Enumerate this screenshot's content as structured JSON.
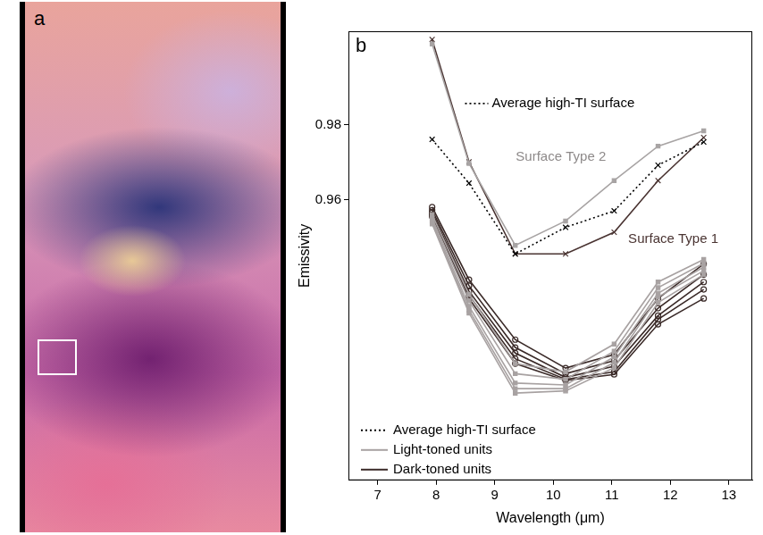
{
  "image_panel": {
    "label": "a"
  },
  "chart_data": {
    "type": "line",
    "panel_label": "b",
    "x_label": "Wavelength (μm)",
    "y_label": "Emissivity",
    "x": [
      7.93,
      8.56,
      9.35,
      10.21,
      11.04,
      11.79,
      12.57
    ],
    "xlim": [
      6.5,
      13.4
    ],
    "xticks": [
      7,
      8,
      9,
      10,
      11,
      12,
      13
    ],
    "ylim": [
      0.885,
      1.005
    ],
    "yticks": [
      0.96,
      0.98
    ],
    "grid": false,
    "legend": "bottom left",
    "annotations": [
      {
        "text": "Average high-TI surface",
        "x": 8.95,
        "y": 0.9857,
        "line_style": "dotted"
      },
      {
        "text": "Surface Type 2",
        "x": 9.36,
        "y": 0.9713
      },
      {
        "text": "Surface Type 1",
        "x": 11.28,
        "y": 0.9495
      }
    ],
    "series": [
      {
        "name": "Average high-TI surface",
        "color": "#000000",
        "line_style": "dotted",
        "marker": "x",
        "values": [
          0.9761,
          0.9644,
          0.9455,
          0.9526,
          0.957,
          0.9692,
          0.9754
        ]
      },
      {
        "name": "Surface Type 2",
        "color": "#a8a4a4",
        "line_style": "solid",
        "marker": "square",
        "values": [
          1.0016,
          0.9697,
          0.9478,
          0.9543,
          0.9651,
          0.9743,
          0.9784
        ]
      },
      {
        "name": "Surface Type 1",
        "color": "#4a3432",
        "line_style": "solid",
        "marker": "x",
        "values": [
          1.0028,
          0.9701,
          0.9455,
          0.9455,
          0.9513,
          0.9651,
          0.9766
        ]
      },
      {
        "name": "Light-toned units",
        "color": "#a8a2a2",
        "line_style": "solid",
        "marker": "square",
        "values": [
          0.956,
          0.9347,
          0.9162,
          0.914,
          0.9214,
          0.938,
          0.944
        ]
      },
      {
        "name": "Light-toned units",
        "color": "#a8a2a2",
        "line_style": "solid",
        "marker": "square",
        "values": [
          0.955,
          0.933,
          0.9135,
          0.912,
          0.9195,
          0.9365,
          0.943
        ]
      },
      {
        "name": "Light-toned units",
        "color": "#a8a2a2",
        "line_style": "solid",
        "marker": "square",
        "values": [
          0.9545,
          0.9315,
          0.911,
          0.9105,
          0.918,
          0.935,
          0.942
        ]
      },
      {
        "name": "Light-toned units",
        "color": "#a8a2a2",
        "line_style": "solid",
        "marker": "square",
        "values": [
          0.954,
          0.9305,
          0.9095,
          0.9095,
          0.9165,
          0.934,
          0.941
        ]
      },
      {
        "name": "Light-toned units",
        "color": "#a8a2a2",
        "line_style": "solid",
        "marker": "square",
        "values": [
          0.9535,
          0.9297,
          0.9083,
          0.9089,
          0.9151,
          0.9325,
          0.94
        ]
      },
      {
        "name": "Dark-toned units",
        "color": "#3a2a28",
        "line_style": "solid",
        "marker": "circle",
        "values": [
          0.958,
          0.9386,
          0.9226,
          0.915,
          0.9186,
          0.9336,
          0.9428
        ]
      },
      {
        "name": "Dark-toned units",
        "color": "#3a2a28",
        "line_style": "solid",
        "marker": "circle",
        "values": [
          0.9572,
          0.937,
          0.9205,
          0.9135,
          0.917,
          0.931,
          0.94
        ]
      },
      {
        "name": "Dark-toned units",
        "color": "#3a2a28",
        "line_style": "solid",
        "marker": "circle",
        "values": [
          0.9565,
          0.9355,
          0.919,
          0.9125,
          0.9155,
          0.929,
          0.938
        ]
      },
      {
        "name": "Dark-toned units",
        "color": "#3a2a28",
        "line_style": "solid",
        "marker": "circle",
        "values": [
          0.956,
          0.9345,
          0.9175,
          0.912,
          0.914,
          0.928,
          0.936
        ]
      },
      {
        "name": "Dark-toned units",
        "color": "#3a2a28",
        "line_style": "solid",
        "marker": "circle",
        "values": [
          0.9555,
          0.9336,
          0.9162,
          0.9117,
          0.9133,
          0.9267,
          0.9336
        ]
      }
    ]
  }
}
